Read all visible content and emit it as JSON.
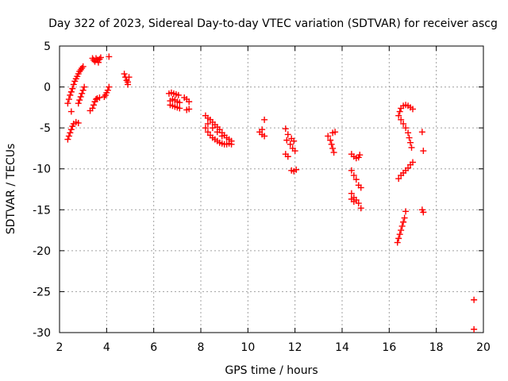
{
  "chart_data": {
    "type": "scatter",
    "title": "Day 322 of 2023, Sidereal Day-to-day VTEC variation (SDTVAR) for receiver ascg",
    "xlabel": "GPS time / hours",
    "ylabel": "SDTVAR / TECUs",
    "xlim": [
      2,
      20
    ],
    "ylim": [
      -30,
      5
    ],
    "xticks": [
      2,
      4,
      6,
      8,
      10,
      12,
      14,
      16,
      18,
      20
    ],
    "yticks": [
      5,
      0,
      -5,
      -10,
      -15,
      -20,
      -25,
      -30
    ],
    "grid": true,
    "marker": "+",
    "color": "#ff0000",
    "series": [
      {
        "name": "SDTVAR",
        "points": [
          [
            2.35,
            -6.4
          ],
          [
            2.4,
            -6.0
          ],
          [
            2.45,
            -5.6
          ],
          [
            2.5,
            -5.2
          ],
          [
            2.55,
            -4.8
          ],
          [
            2.6,
            -4.5
          ],
          [
            2.7,
            -4.3
          ],
          [
            2.8,
            -4.4
          ],
          [
            2.35,
            -2.0
          ],
          [
            2.4,
            -1.5
          ],
          [
            2.45,
            -1.0
          ],
          [
            2.5,
            -0.6
          ],
          [
            2.55,
            -0.2
          ],
          [
            2.6,
            0.3
          ],
          [
            2.65,
            0.7
          ],
          [
            2.7,
            1.0
          ],
          [
            2.75,
            1.3
          ],
          [
            2.8,
            1.6
          ],
          [
            2.85,
            1.9
          ],
          [
            2.9,
            2.1
          ],
          [
            2.95,
            2.3
          ],
          [
            3.0,
            2.5
          ],
          [
            2.5,
            -3.0
          ],
          [
            2.8,
            -2.0
          ],
          [
            2.85,
            -1.6
          ],
          [
            2.9,
            -1.2
          ],
          [
            2.95,
            -0.8
          ],
          [
            3.0,
            -0.4
          ],
          [
            3.05,
            0.0
          ],
          [
            3.3,
            -2.9
          ],
          [
            3.4,
            -2.6
          ],
          [
            3.45,
            -2.2
          ],
          [
            3.5,
            -1.8
          ],
          [
            3.55,
            -1.5
          ],
          [
            3.6,
            -1.4
          ],
          [
            3.7,
            -1.3
          ],
          [
            3.4,
            3.5
          ],
          [
            3.45,
            3.3
          ],
          [
            3.5,
            3.1
          ],
          [
            3.55,
            3.5
          ],
          [
            3.6,
            3.3
          ],
          [
            3.65,
            3.0
          ],
          [
            3.7,
            3.4
          ],
          [
            3.75,
            3.6
          ],
          [
            3.9,
            -1.2
          ],
          [
            3.95,
            -1.0
          ],
          [
            4.0,
            -0.7
          ],
          [
            4.05,
            -0.4
          ],
          [
            4.1,
            0.0
          ],
          [
            4.1,
            3.7
          ],
          [
            4.75,
            1.6
          ],
          [
            4.8,
            1.2
          ],
          [
            4.85,
            0.8
          ],
          [
            4.9,
            0.6
          ],
          [
            4.95,
            1.2
          ],
          [
            4.9,
            0.3
          ],
          [
            6.65,
            -0.8
          ],
          [
            6.75,
            -0.7
          ],
          [
            6.85,
            -0.8
          ],
          [
            6.95,
            -0.9
          ],
          [
            7.05,
            -1.0
          ],
          [
            6.7,
            -1.7
          ],
          [
            6.8,
            -1.5
          ],
          [
            6.9,
            -1.6
          ],
          [
            7.0,
            -1.8
          ],
          [
            7.1,
            -1.9
          ],
          [
            6.7,
            -2.2
          ],
          [
            6.8,
            -2.3
          ],
          [
            6.9,
            -2.4
          ],
          [
            7.0,
            -2.5
          ],
          [
            7.1,
            -2.6
          ],
          [
            7.3,
            -1.3
          ],
          [
            7.4,
            -1.5
          ],
          [
            7.5,
            -1.8
          ],
          [
            7.4,
            -2.8
          ],
          [
            7.5,
            -2.7
          ],
          [
            8.2,
            -3.5
          ],
          [
            8.3,
            -3.8
          ],
          [
            8.4,
            -4.0
          ],
          [
            8.5,
            -4.3
          ],
          [
            8.6,
            -4.6
          ],
          [
            8.7,
            -4.9
          ],
          [
            8.8,
            -5.2
          ],
          [
            8.9,
            -5.6
          ],
          [
            9.0,
            -5.9
          ],
          [
            9.1,
            -6.2
          ],
          [
            9.2,
            -6.4
          ],
          [
            9.3,
            -6.6
          ],
          [
            8.2,
            -5.0
          ],
          [
            8.3,
            -5.5
          ],
          [
            8.4,
            -5.9
          ],
          [
            8.5,
            -6.2
          ],
          [
            8.6,
            -6.4
          ],
          [
            8.7,
            -6.6
          ],
          [
            8.8,
            -6.8
          ],
          [
            8.9,
            -6.9
          ],
          [
            9.0,
            -7.0
          ],
          [
            9.1,
            -7.0
          ],
          [
            9.2,
            -6.9
          ],
          [
            9.3,
            -7.0
          ],
          [
            8.3,
            -4.5
          ],
          [
            8.5,
            -5.0
          ],
          [
            8.7,
            -5.5
          ],
          [
            8.9,
            -6.0
          ],
          [
            10.5,
            -5.5
          ],
          [
            10.6,
            -5.8
          ],
          [
            10.7,
            -6.0
          ],
          [
            10.6,
            -5.2
          ],
          [
            10.7,
            -4.0
          ],
          [
            11.6,
            -5.1
          ],
          [
            11.7,
            -5.8
          ],
          [
            11.65,
            -6.5
          ],
          [
            11.8,
            -7.0
          ],
          [
            11.9,
            -7.5
          ],
          [
            12.0,
            -7.8
          ],
          [
            11.6,
            -8.2
          ],
          [
            11.7,
            -8.5
          ],
          [
            11.85,
            -6.3
          ],
          [
            11.95,
            -6.6
          ],
          [
            11.85,
            -10.2
          ],
          [
            11.95,
            -10.3
          ],
          [
            12.05,
            -10.1
          ],
          [
            13.4,
            -6.0
          ],
          [
            13.5,
            -6.5
          ],
          [
            13.55,
            -7.0
          ],
          [
            13.6,
            -7.5
          ],
          [
            13.65,
            -8.0
          ],
          [
            13.6,
            -5.6
          ],
          [
            13.7,
            -5.5
          ],
          [
            14.4,
            -8.2
          ],
          [
            14.5,
            -8.5
          ],
          [
            14.6,
            -8.7
          ],
          [
            14.7,
            -8.6
          ],
          [
            14.75,
            -8.3
          ],
          [
            14.4,
            -10.2
          ],
          [
            14.5,
            -10.8
          ],
          [
            14.6,
            -11.3
          ],
          [
            14.7,
            -12.0
          ],
          [
            14.8,
            -12.3
          ],
          [
            14.4,
            -13.0
          ],
          [
            14.5,
            -13.5
          ],
          [
            14.6,
            -13.8
          ],
          [
            14.7,
            -14.2
          ],
          [
            14.8,
            -14.8
          ],
          [
            14.5,
            -14.0
          ],
          [
            14.4,
            -13.7
          ],
          [
            16.35,
            -19.0
          ],
          [
            16.4,
            -18.5
          ],
          [
            16.45,
            -18.0
          ],
          [
            16.5,
            -17.5
          ],
          [
            16.55,
            -17.0
          ],
          [
            16.6,
            -16.5
          ],
          [
            16.65,
            -16.0
          ],
          [
            16.7,
            -15.2
          ],
          [
            16.4,
            -11.2
          ],
          [
            16.5,
            -10.8
          ],
          [
            16.6,
            -10.5
          ],
          [
            16.7,
            -10.2
          ],
          [
            16.8,
            -9.9
          ],
          [
            16.9,
            -9.5
          ],
          [
            17.0,
            -9.2
          ],
          [
            16.4,
            -3.5
          ],
          [
            16.45,
            -3.0
          ],
          [
            16.5,
            -2.6
          ],
          [
            16.6,
            -2.3
          ],
          [
            16.7,
            -2.2
          ],
          [
            16.8,
            -2.3
          ],
          [
            16.9,
            -2.5
          ],
          [
            17.0,
            -2.7
          ],
          [
            16.5,
            -4.0
          ],
          [
            16.6,
            -4.5
          ],
          [
            16.7,
            -5.0
          ],
          [
            16.8,
            -5.6
          ],
          [
            16.85,
            -6.2
          ],
          [
            16.9,
            -6.8
          ],
          [
            16.95,
            -7.4
          ],
          [
            17.4,
            -5.5
          ],
          [
            17.45,
            -7.8
          ],
          [
            17.4,
            -15.0
          ],
          [
            17.45,
            -15.3
          ],
          [
            19.6,
            -26.0
          ],
          [
            19.6,
            -29.6
          ]
        ]
      }
    ]
  }
}
